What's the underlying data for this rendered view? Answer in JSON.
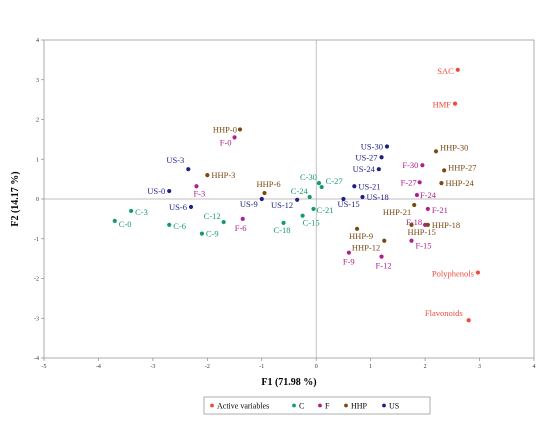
{
  "chart_data": {
    "type": "scatter",
    "xlabel": "F1 (71.98 %)",
    "ylabel": "F2 (14.17 %)",
    "xlim": [
      -5,
      4
    ],
    "ylim": [
      -4,
      4
    ],
    "xticks": [
      "-5",
      "-4",
      "-3",
      "-2",
      "-1",
      "0",
      "1",
      "2",
      "3",
      "4"
    ],
    "yticks": [
      "-4",
      "-3",
      "-2",
      "-1",
      "0",
      "1",
      "2",
      "3",
      "4"
    ],
    "legend_position": "bottom",
    "series": [
      {
        "name": "Active variables",
        "color": "#f04a3a",
        "points": [
          {
            "label": "SAC",
            "x": 2.6,
            "y": 3.25
          },
          {
            "label": "HMF",
            "x": 2.55,
            "y": 2.4
          },
          {
            "label": "Polyphenols",
            "x": 2.97,
            "y": -1.85
          },
          {
            "label": "Flavonoids",
            "x": 2.8,
            "y": -3.05
          }
        ]
      },
      {
        "name": "C",
        "color": "#159a6e",
        "points": [
          {
            "label": "C-0",
            "x": -3.7,
            "y": -0.55
          },
          {
            "label": "C-3",
            "x": -3.4,
            "y": -0.3
          },
          {
            "label": "C-6",
            "x": -2.7,
            "y": -0.65
          },
          {
            "label": "C-9",
            "x": -2.1,
            "y": -0.87
          },
          {
            "label": "C-12",
            "x": -1.7,
            "y": -0.58
          },
          {
            "label": "C-18",
            "x": -0.6,
            "y": -0.6
          },
          {
            "label": "C-15",
            "x": -0.25,
            "y": -0.42
          },
          {
            "label": "C-21",
            "x": -0.05,
            "y": -0.25
          },
          {
            "label": "C-24",
            "x": -0.12,
            "y": 0.05
          },
          {
            "label": "C-27",
            "x": 0.1,
            "y": 0.3
          },
          {
            "label": "C-30",
            "x": 0.05,
            "y": 0.4
          }
        ]
      },
      {
        "name": "F",
        "color": "#b0208a",
        "points": [
          {
            "label": "F-0",
            "x": -1.5,
            "y": 1.55
          },
          {
            "label": "F-3",
            "x": -2.2,
            "y": 0.32
          },
          {
            "label": "F-6",
            "x": -1.35,
            "y": -0.5
          },
          {
            "label": "F-9",
            "x": 0.6,
            "y": -1.35
          },
          {
            "label": "F-12",
            "x": 1.2,
            "y": -1.45
          },
          {
            "label": "F-15",
            "x": 1.75,
            "y": -1.05
          },
          {
            "label": "F-18",
            "x": 2.0,
            "y": -0.65
          },
          {
            "label": "F-21",
            "x": 2.05,
            "y": -0.25
          },
          {
            "label": "F-24",
            "x": 1.85,
            "y": 0.1
          },
          {
            "label": "F-27",
            "x": 1.9,
            "y": 0.42
          },
          {
            "label": "F-30",
            "x": 1.95,
            "y": 0.85
          }
        ]
      },
      {
        "name": "HHP",
        "color": "#7a4a10",
        "points": [
          {
            "label": "HHP-0",
            "x": -1.4,
            "y": 1.75
          },
          {
            "label": "HHP-3",
            "x": -2.0,
            "y": 0.6
          },
          {
            "label": "HHP-6",
            "x": -0.95,
            "y": 0.15
          },
          {
            "label": "HHP-9",
            "x": 0.75,
            "y": -0.75
          },
          {
            "label": "HHP-12",
            "x": 1.25,
            "y": -1.05
          },
          {
            "label": "HHP-15",
            "x": 1.75,
            "y": -0.65
          },
          {
            "label": "HHP-18",
            "x": 2.05,
            "y": -0.65
          },
          {
            "label": "HHP-21",
            "x": 1.8,
            "y": -0.15
          },
          {
            "label": "HHP-24",
            "x": 2.3,
            "y": 0.4
          },
          {
            "label": "HHP-27",
            "x": 2.35,
            "y": 0.72
          },
          {
            "label": "HHP-30",
            "x": 2.2,
            "y": 1.2
          }
        ]
      },
      {
        "name": "US",
        "color": "#1f1f8a",
        "points": [
          {
            "label": "US-0",
            "x": -2.7,
            "y": 0.2
          },
          {
            "label": "US-3",
            "x": -2.35,
            "y": 0.75
          },
          {
            "label": "US-6",
            "x": -2.3,
            "y": -0.2
          },
          {
            "label": "US-9",
            "x": -1.0,
            "y": 0.0
          },
          {
            "label": "US-12",
            "x": -0.35,
            "y": -0.02
          },
          {
            "label": "US-15",
            "x": 0.5,
            "y": 0.0
          },
          {
            "label": "US-18",
            "x": 0.85,
            "y": 0.05
          },
          {
            "label": "US-21",
            "x": 0.7,
            "y": 0.32
          },
          {
            "label": "US-24",
            "x": 1.15,
            "y": 0.75
          },
          {
            "label": "US-27",
            "x": 1.2,
            "y": 1.05
          },
          {
            "label": "US-30",
            "x": 1.3,
            "y": 1.32
          }
        ]
      }
    ]
  }
}
